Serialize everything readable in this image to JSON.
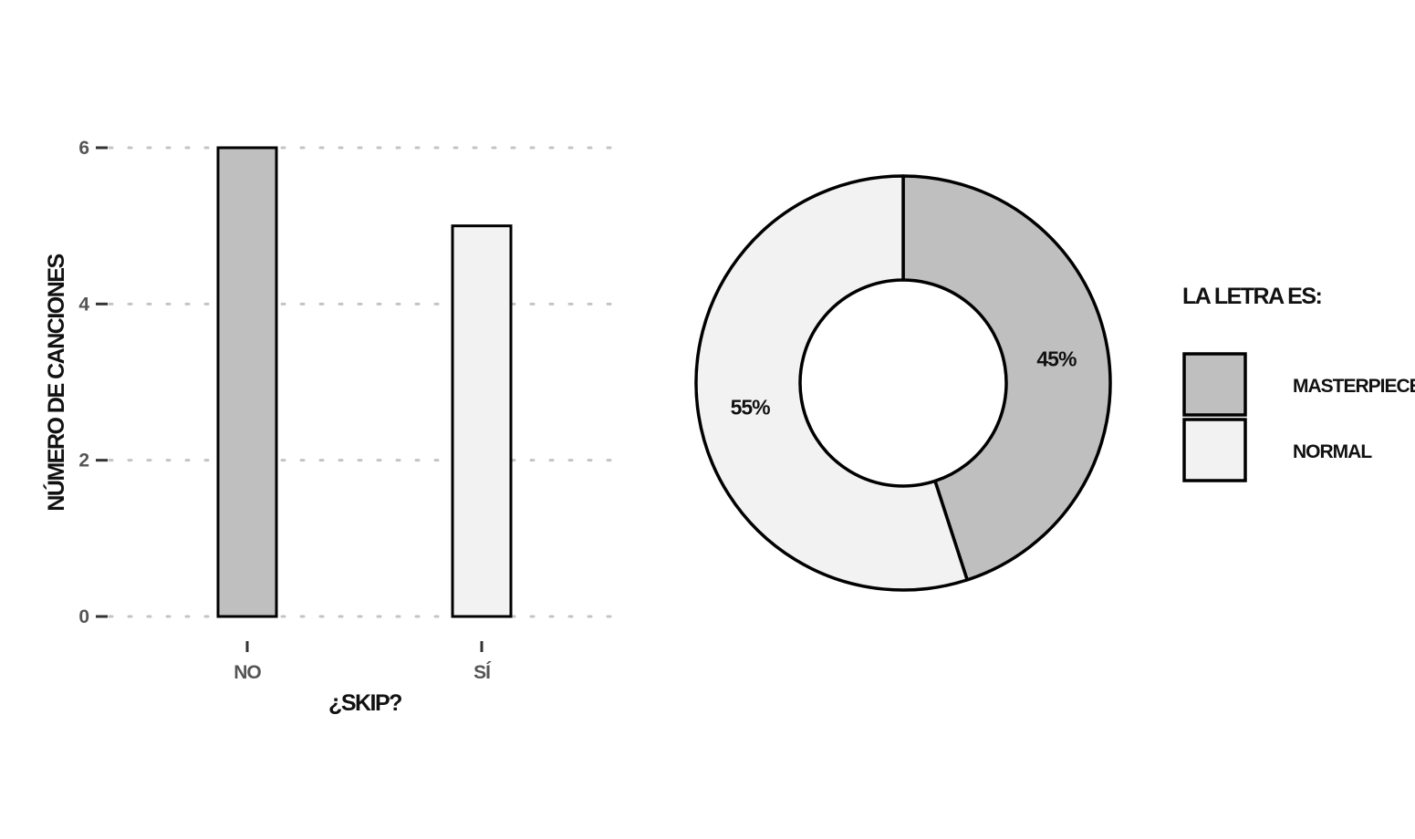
{
  "chart_data": [
    {
      "type": "bar",
      "categories": [
        "NO",
        "SÍ"
      ],
      "values": [
        6,
        5
      ],
      "bar_colors": [
        "#bfbfbf",
        "#f2f2f2"
      ],
      "xlabel": "¿SKIP?",
      "ylabel": "NÚMERO DE CANCIONES",
      "ylim": [
        0,
        6
      ],
      "yticks": [
        0,
        2,
        4,
        6
      ],
      "grid": "horizontal dotted"
    },
    {
      "type": "pie",
      "donut": true,
      "slices": [
        {
          "label": "MASTERPIECE",
          "value": 45,
          "text": "45%",
          "color": "#bfbfbf"
        },
        {
          "label": "NORMAL",
          "value": 55,
          "text": "55%",
          "color": "#f2f2f2"
        }
      ],
      "legend": {
        "title": "LA LETRA ES:",
        "placement": "right"
      }
    }
  ]
}
